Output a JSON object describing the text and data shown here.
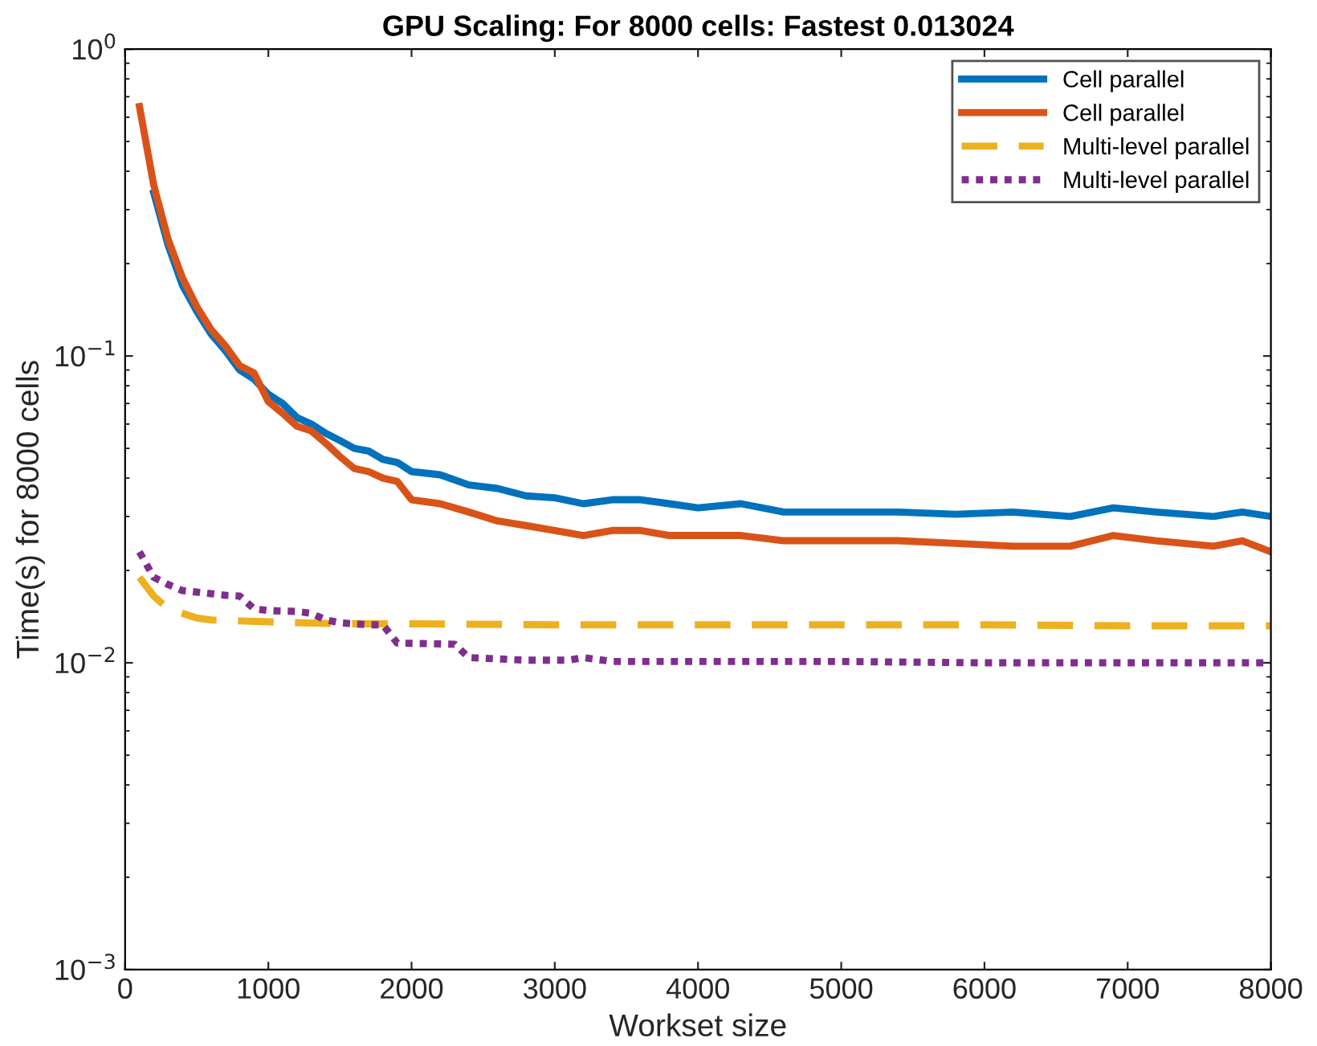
{
  "chart_data": {
    "type": "line",
    "title": "GPU Scaling: For 8000 cells: Fastest 0.013024",
    "xlabel": "Workset size",
    "ylabel": "Time(s) for 8000 cells",
    "log": "y",
    "xlim": [
      0,
      8000
    ],
    "ylim": [
      0.001,
      1
    ],
    "xticks": [
      0,
      1000,
      2000,
      3000,
      4000,
      5000,
      6000,
      7000,
      8000
    ],
    "yticks": [
      {
        "value": 0.001,
        "label": "10$^{−3}$"
      },
      {
        "value": 0.01,
        "label": "10$^{−2}$"
      },
      {
        "value": 0.1,
        "label": "10$^{−1}$"
      },
      {
        "value": 1,
        "label": "10$^{0}$"
      }
    ],
    "grid": false,
    "legend": "top right",
    "marker": "none",
    "series": [
      {
        "name": "Cell parallel",
        "color": "#0072bd",
        "line_style": "solid",
        "x": [
          200,
          300,
          400,
          500,
          600,
          700,
          800,
          900,
          1000,
          1100,
          1200,
          1300,
          1400,
          1500,
          1600,
          1700,
          1800,
          1900,
          2000,
          2200,
          2400,
          2600,
          2800,
          3000,
          3200,
          3400,
          3600,
          3800,
          4000,
          4300,
          4600,
          5000,
          5400,
          5800,
          6200,
          6600,
          6900,
          7200,
          7600,
          7800,
          8000
        ],
        "values": [
          0.34,
          0.23,
          0.17,
          0.14,
          0.118,
          0.104,
          0.09,
          0.084,
          0.075,
          0.07,
          0.063,
          0.06,
          0.056,
          0.053,
          0.05,
          0.049,
          0.046,
          0.045,
          0.042,
          0.041,
          0.038,
          0.037,
          0.035,
          0.0345,
          0.033,
          0.034,
          0.034,
          0.033,
          0.032,
          0.033,
          0.031,
          0.031,
          0.031,
          0.0305,
          0.031,
          0.03,
          0.032,
          0.031,
          0.03,
          0.031,
          0.03
        ]
      },
      {
        "name": "Cell parallel",
        "color": "#d95319",
        "line_style": "solid",
        "x": [
          100,
          200,
          300,
          400,
          500,
          600,
          700,
          800,
          900,
          1000,
          1100,
          1200,
          1300,
          1400,
          1500,
          1600,
          1700,
          1800,
          1900,
          2000,
          2200,
          2400,
          2600,
          2800,
          3000,
          3200,
          3400,
          3600,
          3800,
          4000,
          4300,
          4600,
          5000,
          5400,
          5800,
          6200,
          6600,
          6900,
          7200,
          7600,
          7800,
          8000
        ],
        "values": [
          0.65,
          0.36,
          0.24,
          0.18,
          0.145,
          0.122,
          0.108,
          0.093,
          0.088,
          0.071,
          0.065,
          0.059,
          0.057,
          0.052,
          0.047,
          0.043,
          0.042,
          0.04,
          0.039,
          0.034,
          0.033,
          0.031,
          0.029,
          0.028,
          0.027,
          0.026,
          0.027,
          0.027,
          0.026,
          0.026,
          0.026,
          0.025,
          0.025,
          0.025,
          0.0245,
          0.024,
          0.024,
          0.026,
          0.025,
          0.024,
          0.025,
          0.023
        ]
      },
      {
        "name": "Multi-level parallel",
        "color": "#edb120",
        "line_style": "dashed",
        "x": [
          100,
          200,
          300,
          400,
          500,
          600,
          800,
          1000,
          1500,
          2000,
          3000,
          4000,
          5000,
          6000,
          7000,
          8000
        ],
        "values": [
          0.019,
          0.0165,
          0.015,
          0.0145,
          0.014,
          0.0138,
          0.0137,
          0.0136,
          0.0134,
          0.0134,
          0.0133,
          0.0133,
          0.0133,
          0.0133,
          0.0132,
          0.0132
        ]
      },
      {
        "name": "Multi-level parallel",
        "color": "#7e2f8e",
        "line_style": "dotted",
        "x": [
          100,
          200,
          300,
          400,
          500,
          600,
          700,
          800,
          900,
          1000,
          1200,
          1300,
          1400,
          1500,
          1700,
          1800,
          1900,
          2300,
          2400,
          2800,
          3100,
          3200,
          3400,
          4000,
          5000,
          6000,
          7000,
          8000
        ],
        "values": [
          0.023,
          0.019,
          0.018,
          0.0172,
          0.017,
          0.0168,
          0.0166,
          0.0165,
          0.015,
          0.0148,
          0.0147,
          0.0145,
          0.0138,
          0.0135,
          0.0133,
          0.0133,
          0.0116,
          0.0115,
          0.0104,
          0.0102,
          0.0102,
          0.0104,
          0.0101,
          0.0101,
          0.0101,
          0.01,
          0.01,
          0.01
        ]
      }
    ]
  }
}
